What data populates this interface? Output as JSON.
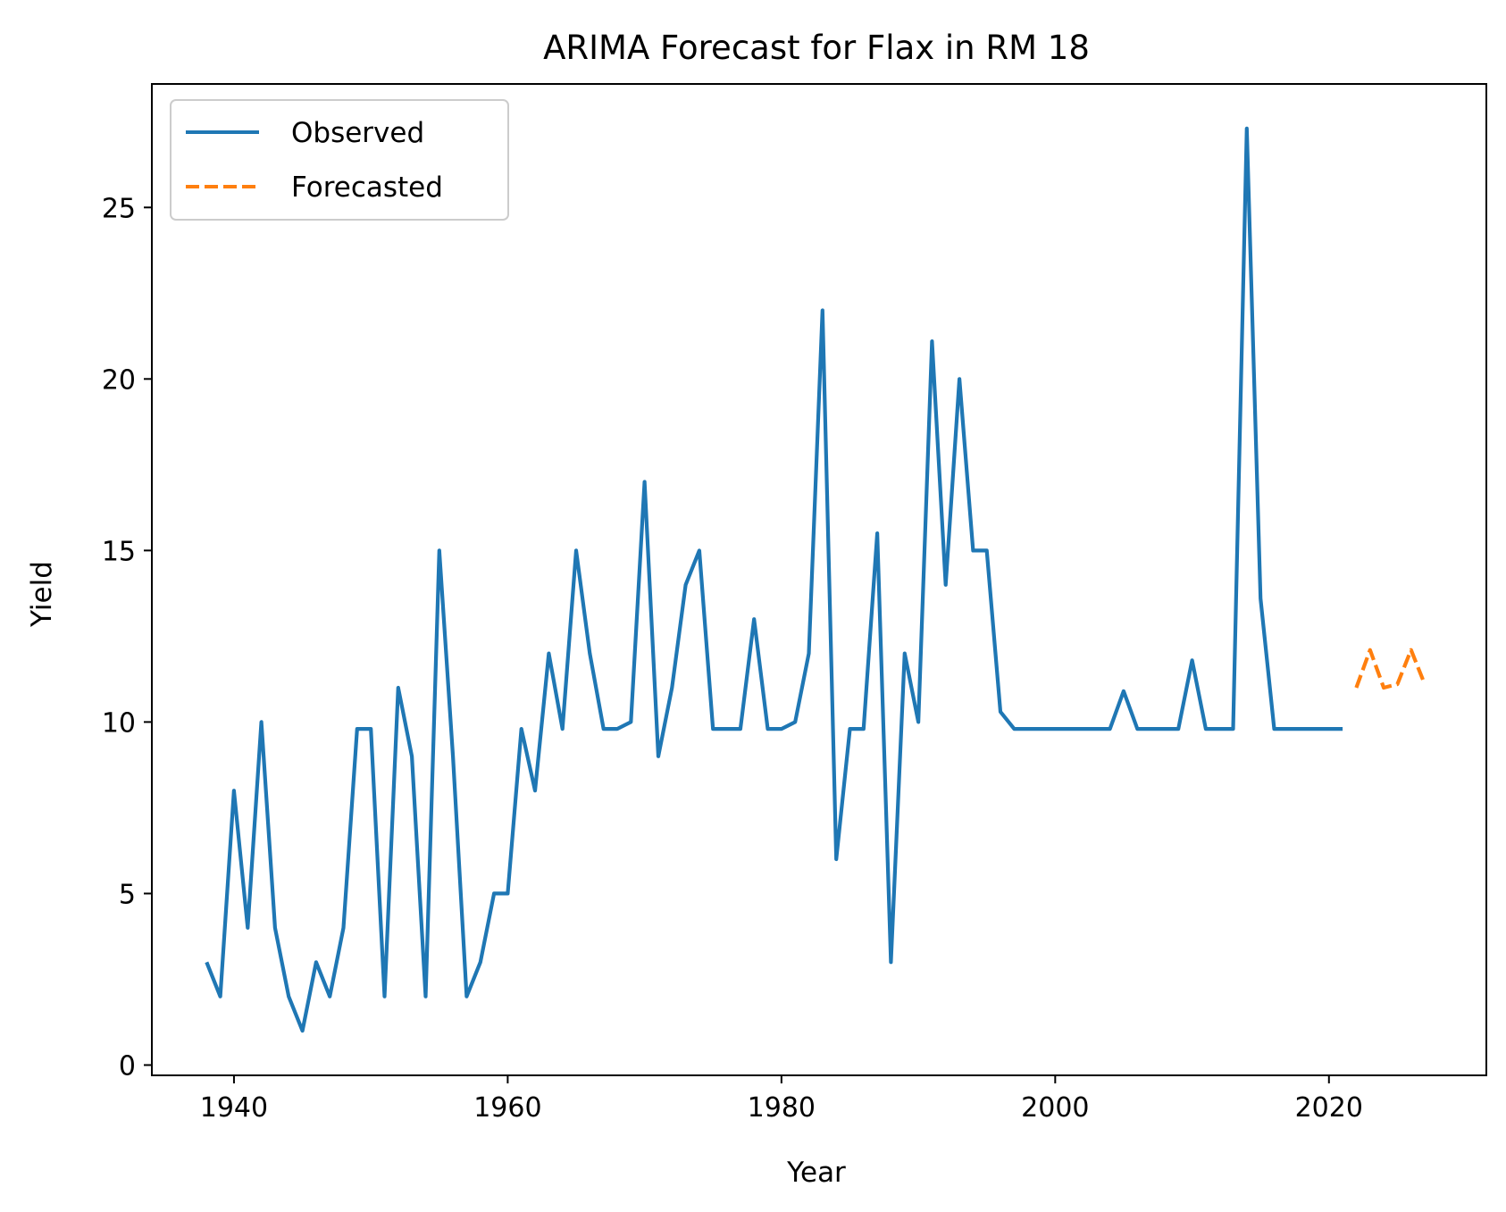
{
  "chart_data": {
    "type": "line",
    "title": "ARIMA Forecast for Flax in RM 18",
    "xlabel": "Year",
    "ylabel": "Yield",
    "xlim": [
      1934,
      2031.5
    ],
    "ylim": [
      -0.3,
      28.6
    ],
    "xticks": [
      1940,
      1960,
      1980,
      2000,
      2020
    ],
    "yticks": [
      0,
      5,
      10,
      15,
      20,
      25
    ],
    "grid": false,
    "legend_position": "upper-left",
    "series": [
      {
        "name": "Observed",
        "color": "#1f77b4",
        "style": "solid",
        "x": [
          1938,
          1939,
          1940,
          1941,
          1942,
          1943,
          1944,
          1945,
          1946,
          1947,
          1948,
          1949,
          1950,
          1951,
          1952,
          1953,
          1954,
          1955,
          1956,
          1957,
          1958,
          1959,
          1960,
          1961,
          1962,
          1963,
          1964,
          1965,
          1966,
          1967,
          1968,
          1969,
          1970,
          1971,
          1972,
          1973,
          1974,
          1975,
          1976,
          1977,
          1978,
          1979,
          1980,
          1981,
          1982,
          1983,
          1984,
          1985,
          1986,
          1987,
          1988,
          1989,
          1990,
          1991,
          1992,
          1993,
          1994,
          1995,
          1996,
          1997,
          1998,
          1999,
          2000,
          2001,
          2002,
          2003,
          2004,
          2005,
          2006,
          2007,
          2008,
          2009,
          2010,
          2011,
          2012,
          2013,
          2014,
          2015,
          2016,
          2017,
          2018,
          2019,
          2020,
          2021
        ],
        "y": [
          3,
          2,
          8,
          4,
          10,
          4,
          2,
          1,
          3,
          2,
          4,
          9.8,
          9.8,
          2,
          11,
          9,
          2,
          15,
          9,
          2,
          3,
          5,
          5,
          9.8,
          8,
          12,
          9.8,
          15,
          12,
          9.8,
          9.8,
          10,
          17,
          9,
          11,
          14,
          15,
          9.8,
          9.8,
          9.8,
          13,
          9.8,
          9.8,
          10,
          12,
          22,
          6,
          9.8,
          9.8,
          15.5,
          3,
          12,
          10,
          21.1,
          14,
          20,
          15,
          15,
          10.3,
          9.8,
          9.8,
          9.8,
          9.8,
          9.8,
          9.8,
          9.8,
          9.8,
          10.9,
          9.8,
          9.8,
          9.8,
          9.8,
          11.8,
          9.8,
          9.8,
          9.8,
          27.3,
          13.6,
          9.8,
          9.8,
          9.8,
          9.8,
          9.8,
          9.8
        ]
      },
      {
        "name": "Forecasted",
        "color": "#ff7f0e",
        "style": "dashed",
        "x": [
          2022,
          2023,
          2024,
          2025,
          2026,
          2027
        ],
        "y": [
          11,
          12.1,
          11,
          11.1,
          12.1,
          11.1
        ]
      }
    ]
  }
}
